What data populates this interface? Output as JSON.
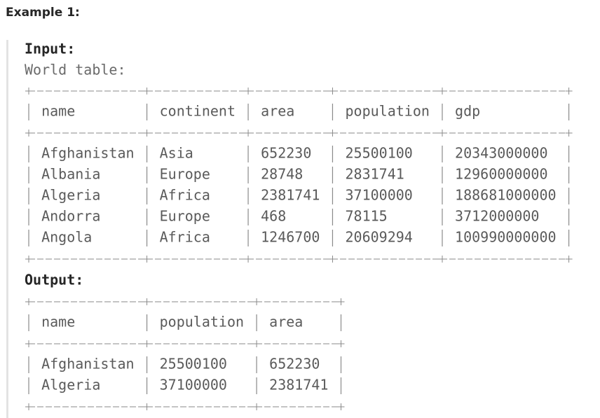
{
  "heading": "Example 1:",
  "input": {
    "label": "Input:",
    "table_name": "World table:",
    "table": {
      "header": [
        "name",
        "continent",
        "area",
        "population",
        "gdp"
      ],
      "rows": [
        [
          "Afghanistan",
          "Asia",
          652230,
          25500100,
          20343000000
        ],
        [
          "Albania",
          "Europe",
          28748,
          2831741,
          12960000000
        ],
        [
          "Algeria",
          "Africa",
          2381741,
          37100000,
          188681000000
        ],
        [
          "Andorra",
          "Europe",
          468,
          78115,
          3712000000
        ],
        [
          "Angola",
          "Africa",
          1246700,
          20609294,
          100990000000
        ]
      ]
    }
  },
  "output": {
    "label": "Output:",
    "table": {
      "header": [
        "name",
        "population",
        "area"
      ],
      "rows": [
        [
          "Afghanistan",
          25500100,
          652230
        ],
        [
          "Algeria",
          37100000,
          2381741
        ]
      ]
    }
  }
}
